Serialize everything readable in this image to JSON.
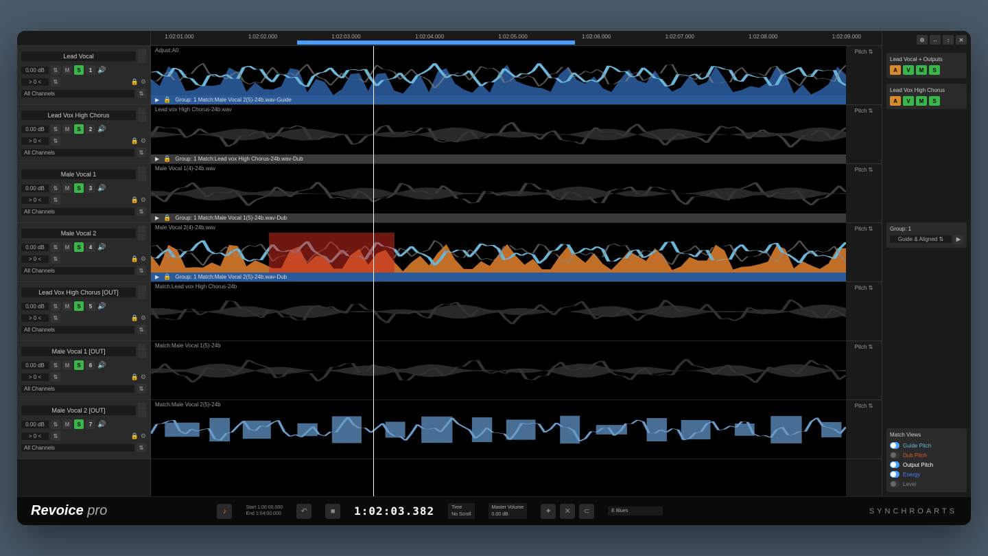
{
  "app": {
    "name_bold": "Revoice",
    "name_light": "pro",
    "company": "SYNCHROARTS"
  },
  "timeline": {
    "ticks": [
      "1:02:01.000",
      "1:02:02.000",
      "1:02:03.000",
      "1:02:04.000",
      "1:02:05.000",
      "1:02:06.000",
      "1:02:07.000",
      "1:02:08.000",
      "1:02:09.000"
    ],
    "range_start_pct": 21,
    "range_end_pct": 61,
    "playhead_pct": 32
  },
  "tracks": [
    {
      "name": "Lead Vocal",
      "gain": "0.00 dB",
      "pan": "> 0 <",
      "channels": "All Channels",
      "num": "1",
      "clip_label": "Adjust:A0",
      "footer": "Group: 1   Match:Male Vocal  2(5)-24b.wav-Guide",
      "footer_style": "blue",
      "style": "guide",
      "energy_color": "#2a5a9a",
      "pitch_color": "#6ab6d8",
      "has_energy": true
    },
    {
      "name": "Lead Vox High Chorus",
      "gain": "0.00 dB",
      "pan": "> 0 <",
      "channels": "All Channels",
      "num": "2",
      "clip_label": "Lead vox High Chorus-24b.wav",
      "footer": "Group: 1   Match:Lead vox High Chorus-24b.wav-Dub",
      "footer_style": "gray",
      "style": "dub",
      "pitch_color": "#555"
    },
    {
      "name": "Male Vocal  1",
      "gain": "0.00 dB",
      "pan": "> 0 <",
      "channels": "All Channels",
      "num": "3",
      "clip_label": "Male Vocal  1(4)-24b.wav",
      "footer": "Group: 1   Match:Male Vocal  1(5)-24b.wav-Dub",
      "footer_style": "gray",
      "style": "dub",
      "pitch_color": "#555"
    },
    {
      "name": "Male Vocal  2",
      "gain": "0.00 dB",
      "pan": "> 0 <",
      "channels": "All Channels",
      "num": "4",
      "clip_label": "Male Vocal  2(4)-24b.wav",
      "footer": "Group: 1   Match:Male Vocal  2(5)-24b.wav-Dub",
      "footer_style": "blue",
      "style": "dub-energy",
      "energy_color": "#d87a2a",
      "pitch_color": "#6ab6d8",
      "has_energy": true,
      "red_start_pct": 17,
      "red_end_pct": 35
    },
    {
      "name": "Lead Vox High Chorus  [OUT]",
      "gain": "0.00 dB",
      "pan": "> 0 <",
      "channels": "All Channels",
      "num": "5",
      "clip_label": "Match:Lead vox High Chorus-24b",
      "footer": "",
      "footer_style": "none",
      "style": "out",
      "pitch_color": "#444"
    },
    {
      "name": "Male Vocal  1  [OUT]",
      "gain": "0.00 dB",
      "pan": "> 0 <",
      "channels": "All Channels",
      "num": "6",
      "clip_label": "Match:Male Vocal  1(5)-24b",
      "footer": "",
      "footer_style": "none",
      "style": "out",
      "pitch_color": "#444"
    },
    {
      "name": "Male Vocal  2  [OUT]",
      "gain": "0.00 dB",
      "pan": "> 0 <",
      "channels": "All Channels",
      "num": "7",
      "clip_label": "Match:Male Vocal  2(5)-24b",
      "footer": "",
      "footer_style": "none",
      "style": "out-blocks",
      "pitch_color": "#6a9ac8"
    }
  ],
  "pitch_label": "Pitch",
  "right": {
    "sections": [
      {
        "title": "Lead Vocal + Outputs",
        "btns": [
          "A",
          "V",
          "M",
          "S"
        ]
      },
      {
        "title": "Lead Vox High Chorus",
        "btns": [
          "A",
          "V",
          "M",
          "S"
        ]
      }
    ],
    "group": {
      "title": "Group: 1",
      "mode": "Guide & Aligned"
    },
    "match_views": {
      "title": "Match Views",
      "items": [
        {
          "label": "Guide Pitch",
          "color": "#6ab6d8",
          "on": true
        },
        {
          "label": "Dub Pitch",
          "color": "#d85a2a",
          "on": false
        },
        {
          "label": "Output Pitch",
          "color": "#ffffff",
          "on": true
        },
        {
          "label": "Energy",
          "color": "#4a7eff",
          "on": true
        },
        {
          "label": "Level",
          "color": "#888",
          "on": false
        }
      ]
    }
  },
  "transport": {
    "start": "Start  1:00:00.000",
    "end": "End   1:04:00.000",
    "current": "1:02:03.382",
    "time_label": "Time",
    "scroll_label": "No Scroll",
    "master_label": "Master Volume",
    "master_db": "0.00 dB",
    "preset": "E Blues"
  },
  "colors": {
    "bg": "#0a0a0a",
    "panel": "#1a1a1a",
    "header": "#2a2a2a",
    "solo": "#39b54a",
    "blue": "#4a9eff",
    "orange": "#d87a2a"
  }
}
